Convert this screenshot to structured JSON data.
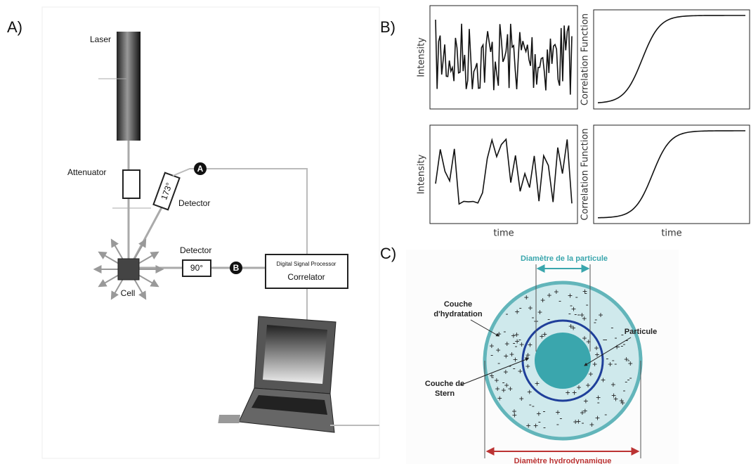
{
  "panels": {
    "a": {
      "label": "A)",
      "laser": "Laser",
      "attenuator": "Attenuator",
      "detector_back": "Detector",
      "angle_back": "173°",
      "detector_side": "Detector",
      "angle_side": "90°",
      "marker_a": "A",
      "marker_b": "B",
      "cell": "Cell",
      "processor": "Digital Signal Processor",
      "correlator": "Correlator"
    },
    "b": {
      "label": "B)",
      "plots": [
        {
          "y_label": "Intensity"
        },
        {
          "y_label": "Correlation Function"
        },
        {
          "y_label": "Intensity",
          "x_label": "time"
        },
        {
          "y_label": "Correlation Function",
          "x_label": "time"
        }
      ]
    },
    "c": {
      "label": "C)",
      "particle_diameter": "Diamètre de la particule",
      "hydration_layer": [
        "Couche",
        "d'hydratation"
      ],
      "particle": "Particule",
      "stern_layer": [
        "Couche de",
        "Stern"
      ],
      "hydrodynamic_diameter": "Diamètre hydrodynamique"
    }
  }
}
